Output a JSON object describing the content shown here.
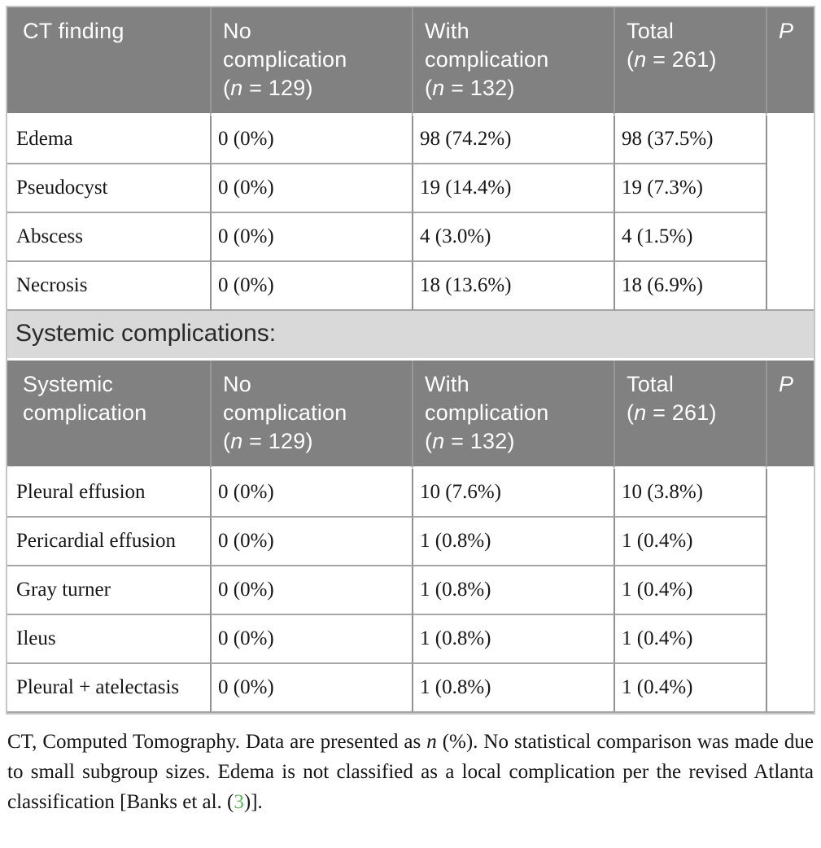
{
  "colors": {
    "header_bg": "#818181",
    "header_text": "#ffffff",
    "band_bg": "#d9d9d9",
    "grid_line": "#a6a6a6",
    "citation_green": "#5cb85c"
  },
  "table1": {
    "header": [
      {
        "lines": [
          [
            {
              "t": "CT finding"
            }
          ]
        ]
      },
      {
        "lines": [
          [
            {
              "t": "No"
            }
          ],
          [
            {
              "t": "complication"
            }
          ],
          [
            {
              "t": "("
            },
            {
              "t": "n",
              "i": true
            },
            {
              "t": " = 129)"
            }
          ]
        ]
      },
      {
        "lines": [
          [
            {
              "t": "With"
            }
          ],
          [
            {
              "t": "complication"
            }
          ],
          [
            {
              "t": "("
            },
            {
              "t": "n",
              "i": true
            },
            {
              "t": " = 132)"
            }
          ]
        ]
      },
      {
        "lines": [
          [
            {
              "t": "Total"
            }
          ],
          [
            {
              "t": "("
            },
            {
              "t": "n",
              "i": true
            },
            {
              "t": " = 261)"
            }
          ]
        ]
      },
      {
        "lines": [
          [
            {
              "t": "P",
              "i": true
            }
          ]
        ]
      }
    ],
    "rows": [
      {
        "finding": "Edema",
        "no_complication": "0 (0%)",
        "with_complication": "98 (74.2%)",
        "total": "98 (37.5%)",
        "p": ""
      },
      {
        "finding": "Pseudocyst",
        "no_complication": "0 (0%)",
        "with_complication": "19 (14.4%)",
        "total": "19 (7.3%)",
        "p": ""
      },
      {
        "finding": "Abscess",
        "no_complication": "0 (0%)",
        "with_complication": "4 (3.0%)",
        "total": "4 (1.5%)",
        "p": ""
      },
      {
        "finding": "Necrosis",
        "no_complication": "0 (0%)",
        "with_complication": "18 (13.6%)",
        "total": "18 (6.9%)",
        "p": ""
      }
    ]
  },
  "section": {
    "label": "Systemic complications:"
  },
  "table2": {
    "header": [
      {
        "lines": [
          [
            {
              "t": "Systemic"
            }
          ],
          [
            {
              "t": "complication"
            }
          ]
        ]
      },
      {
        "lines": [
          [
            {
              "t": "No"
            }
          ],
          [
            {
              "t": "complication"
            }
          ],
          [
            {
              "t": "("
            },
            {
              "t": "n",
              "i": true
            },
            {
              "t": " = 129)"
            }
          ]
        ]
      },
      {
        "lines": [
          [
            {
              "t": "With"
            }
          ],
          [
            {
              "t": "complication"
            }
          ],
          [
            {
              "t": "("
            },
            {
              "t": "n",
              "i": true
            },
            {
              "t": " = 132)"
            }
          ]
        ]
      },
      {
        "lines": [
          [
            {
              "t": "Total"
            }
          ],
          [
            {
              "t": "("
            },
            {
              "t": "n",
              "i": true
            },
            {
              "t": " = 261)"
            }
          ]
        ]
      },
      {
        "lines": [
          [
            {
              "t": "P",
              "i": true
            }
          ]
        ]
      }
    ],
    "rows": [
      {
        "finding": "Pleural effusion",
        "no_complication": "0 (0%)",
        "with_complication": "10 (7.6%)",
        "total": "10 (3.8%)",
        "p": ""
      },
      {
        "finding": "Pericardial effusion",
        "no_complication": "0 (0%)",
        "with_complication": "1 (0.8%)",
        "total": "1 (0.4%)",
        "p": ""
      },
      {
        "finding": "Gray turner",
        "no_complication": "0 (0%)",
        "with_complication": "1 (0.8%)",
        "total": "1 (0.4%)",
        "p": ""
      },
      {
        "finding": "Ileus",
        "no_complication": "0 (0%)",
        "with_complication": "1 (0.8%)",
        "total": "1 (0.4%)",
        "p": ""
      },
      {
        "finding": "Pleural + atelectasis",
        "no_complication": "0 (0%)",
        "with_complication": "1 (0.8%)",
        "total": "1 (0.4%)",
        "p": ""
      }
    ]
  },
  "footnote": {
    "segments": [
      {
        "t": "CT, Computed Tomography. Data are presented as "
      },
      {
        "t": "n",
        "i": true
      },
      {
        "t": " (%). No statistical comparison was made due to small subgroup sizes. Edema is not classified as a local complication per the revised Atlanta classification [Banks et al. ("
      },
      {
        "t": "3",
        "c": "#5cb85c",
        "name": "citation-link",
        "click": true
      },
      {
        "t": ")]."
      }
    ]
  }
}
